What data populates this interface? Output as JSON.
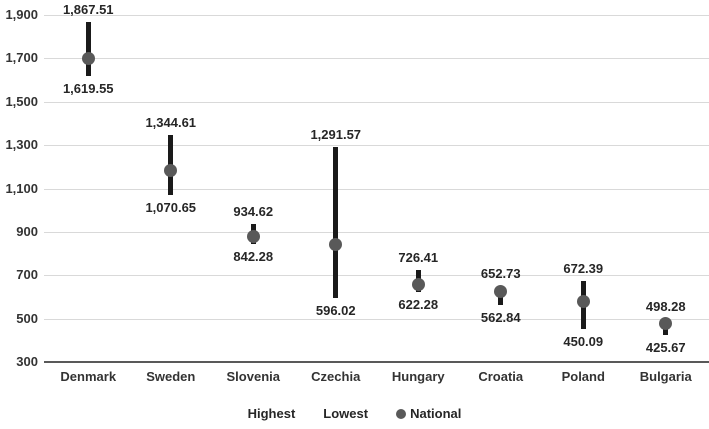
{
  "chart_data": {
    "type": "range-dot",
    "title": "",
    "xlabel": "",
    "ylabel": "",
    "categories": [
      "Denmark",
      "Sweden",
      "Slovenia",
      "Czechia",
      "Hungary",
      "Croatia",
      "Poland",
      "Bulgaria"
    ],
    "series": [
      {
        "name": "Highest",
        "values": [
          1867.51,
          1344.61,
          934.62,
          1291.57,
          726.41,
          652.73,
          672.39,
          498.28
        ],
        "labeled": true
      },
      {
        "name": "Lowest",
        "values": [
          1619.55,
          1070.65,
          842.28,
          596.02,
          622.28,
          562.84,
          450.09,
          425.67
        ],
        "labeled": true
      },
      {
        "name": "National",
        "values": [
          1700,
          1181,
          880,
          840,
          659,
          624,
          577,
          477
        ],
        "labeled": false,
        "marker": "dot"
      }
    ],
    "ylim": [
      300,
      1900
    ],
    "ytick_step": 200,
    "ytick_labels": [
      "300",
      "500",
      "700",
      "900",
      "1,100",
      "1,300",
      "1,500",
      "1,700",
      "1,900"
    ],
    "grid": true,
    "legend_position": "bottom",
    "legend_items": [
      {
        "label": "Highest"
      },
      {
        "label": "Lowest"
      },
      {
        "label": "National",
        "marker": "dot"
      }
    ],
    "colors": {
      "bar": "#1a1a1a",
      "national_dot": "#595959",
      "gridline": "#d9d9d9",
      "axis_line": "#595959",
      "label_text": "#262626",
      "tick_text": "#333333"
    }
  }
}
